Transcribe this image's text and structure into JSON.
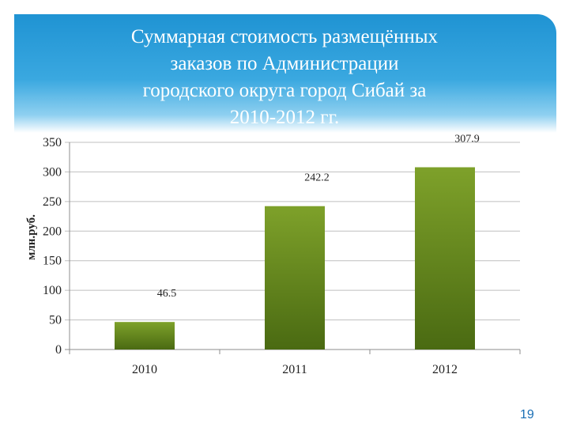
{
  "slide": {
    "title_lines": [
      "Суммарная стоимость размещённых",
      "заказов по Администрации",
      "городского округа город Сибай за",
      "2010-2012 гг."
    ],
    "page_number": "19"
  },
  "colors": {
    "header": "#2a9ad8",
    "bar_top": "#7ea12a",
    "bar_bottom": "#4a6a12",
    "grid": "#bfbfbf"
  },
  "chart_data": {
    "type": "bar",
    "title": "Суммарная стоимость размещённых заказов по Администрации городского округа город Сибай за 2010-2012 гг.",
    "categories": [
      "2010",
      "2011",
      "2012"
    ],
    "values": [
      46.5,
      242.2,
      307.9
    ],
    "data_labels": [
      "46.5",
      "242.2",
      "307.9"
    ],
    "ylabel": "млн.руб.",
    "xlabel": "",
    "ylim": [
      0,
      350
    ],
    "yticks": [
      0,
      50,
      100,
      150,
      200,
      250,
      300,
      350
    ],
    "grid": true,
    "legend": "none"
  }
}
